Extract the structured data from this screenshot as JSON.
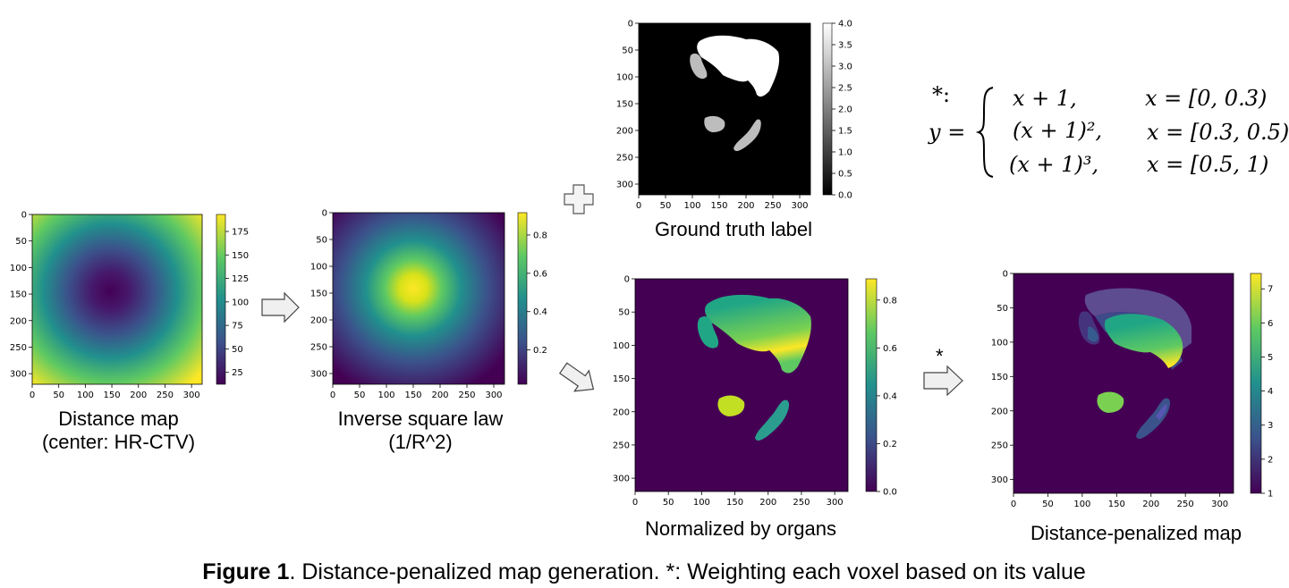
{
  "panels": [
    {
      "id": "distance-map",
      "caption_lines": [
        "Distance map",
        "(center: HR-CTV)"
      ],
      "colorbar_ticks": [
        "175",
        "150",
        "125",
        "100",
        "75",
        "50",
        "25"
      ],
      "colormap": "viridis"
    },
    {
      "id": "inverse-square",
      "caption_lines": [
        "Inverse square law",
        "(1/R^2)"
      ],
      "colorbar_ticks": [
        "0.8",
        "0.6",
        "0.4",
        "0.2"
      ],
      "colormap": "viridis"
    },
    {
      "id": "ground-truth",
      "caption_lines": [
        "Ground truth label"
      ],
      "colorbar_ticks": [
        "4.0",
        "3.5",
        "3.0",
        "2.5",
        "2.0",
        "1.5",
        "1.0",
        "0.5",
        "0.0"
      ],
      "colormap": "gray"
    },
    {
      "id": "normalized",
      "caption_lines": [
        "Normalized by organs"
      ],
      "colorbar_ticks": [
        "0.8",
        "0.6",
        "0.4",
        "0.2",
        "0.0"
      ],
      "colormap": "viridis"
    },
    {
      "id": "penalized",
      "caption_lines": [
        "Distance-penalized map"
      ],
      "colorbar_ticks": [
        "7",
        "6",
        "5",
        "4",
        "3",
        "2",
        "1"
      ],
      "colormap": "viridis"
    }
  ],
  "axis_ticks": {
    "x": [
      "0",
      "50",
      "100",
      "150",
      "200",
      "250",
      "300"
    ],
    "y": [
      "0",
      "50",
      "100",
      "150",
      "200",
      "250",
      "300"
    ]
  },
  "operators": {
    "plus": "+",
    "star_label": "*"
  },
  "formula": {
    "lead": "*:",
    "lhs": "y =",
    "cases": [
      {
        "expr": "x + 1,",
        "cond": "x = [0, 0.3)"
      },
      {
        "expr": "(x + 1)²,",
        "cond": "x = [0.3, 0.5)"
      },
      {
        "expr": "(x + 1)³,",
        "cond": "x = [0.5, 1)"
      }
    ]
  },
  "figure_caption": {
    "bold": "Figure 1",
    "rest": ". Distance-penalized map generation. *: Weighting each voxel based on its value"
  }
}
